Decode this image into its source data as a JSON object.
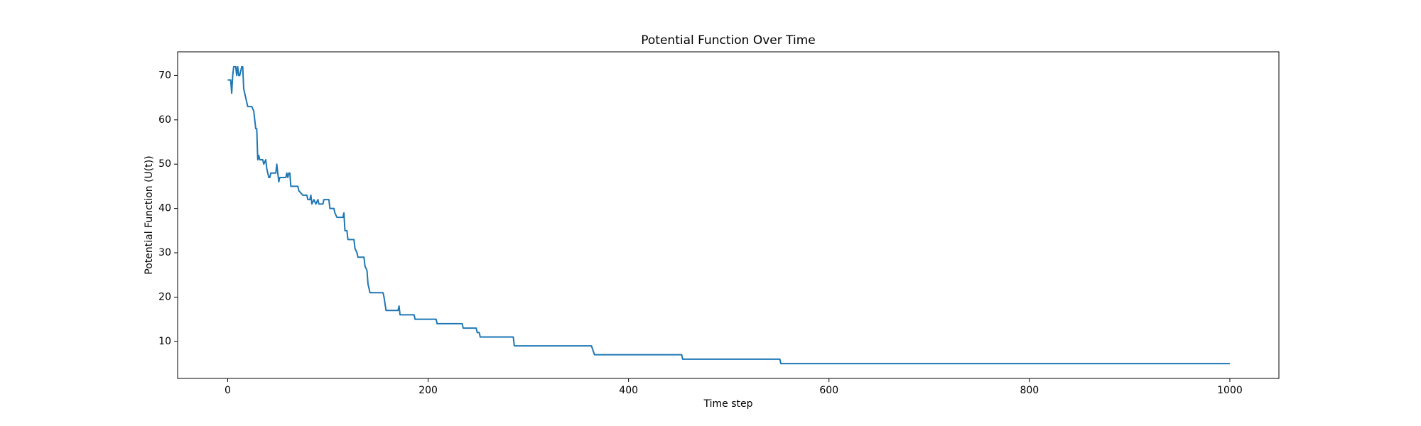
{
  "chart_data": {
    "type": "line",
    "title": "Potential Function Over Time",
    "x_label": "Time step",
    "y_label": "Potential Function (U(t))",
    "x": [
      0,
      3,
      4,
      5,
      6,
      8,
      9,
      10,
      11,
      12,
      14,
      15,
      16,
      18,
      20,
      24,
      26,
      28,
      29,
      30,
      31,
      32,
      35,
      36,
      38,
      39,
      40,
      41,
      42,
      43,
      48,
      49,
      50,
      51,
      52,
      58,
      59,
      60,
      61,
      62,
      63,
      70,
      71,
      75,
      79,
      80,
      82,
      83,
      84,
      86,
      88,
      90,
      91,
      95,
      96,
      101,
      102,
      106,
      107,
      109,
      115,
      116,
      117,
      119,
      120,
      126,
      127,
      129,
      130,
      136,
      137,
      139,
      140,
      142,
      155,
      156,
      158,
      170,
      171,
      172,
      186,
      187,
      208,
      209,
      234,
      235,
      248,
      249,
      251,
      252,
      285,
      286,
      363,
      366,
      453,
      454,
      551,
      552,
      1000
    ],
    "series": [
      {
        "name": "U(t)",
        "color": "#1f77b4",
        "values": [
          69,
          69,
          66,
          70,
          72,
          72,
          70,
          72,
          70,
          70,
          72,
          72,
          67,
          65,
          63,
          63,
          62,
          58,
          58,
          51,
          52,
          51,
          51,
          50,
          51,
          49,
          48,
          47,
          47,
          48,
          48,
          50,
          48,
          46,
          47,
          47,
          48,
          47,
          48,
          48,
          45,
          45,
          44,
          43,
          43,
          42,
          42,
          43,
          41,
          42,
          41,
          42,
          41,
          41,
          42,
          42,
          40,
          40,
          39,
          38,
          38,
          39,
          35,
          35,
          33,
          33,
          31,
          30,
          29,
          29,
          27,
          26,
          23,
          21,
          21,
          20,
          17,
          17,
          18,
          16,
          16,
          15,
          15,
          14,
          14,
          13,
          13,
          12,
          12,
          11,
          11,
          9,
          9,
          7,
          7,
          6,
          6,
          5,
          5
        ]
      }
    ],
    "xlim": [
      -49.95,
      1048.95
    ],
    "ylim": [
      1.65,
      75.35
    ],
    "xticks": [
      0,
      200,
      400,
      600,
      800,
      1000
    ],
    "yticks": [
      10,
      20,
      30,
      40,
      50,
      60,
      70
    ],
    "grid": false
  }
}
